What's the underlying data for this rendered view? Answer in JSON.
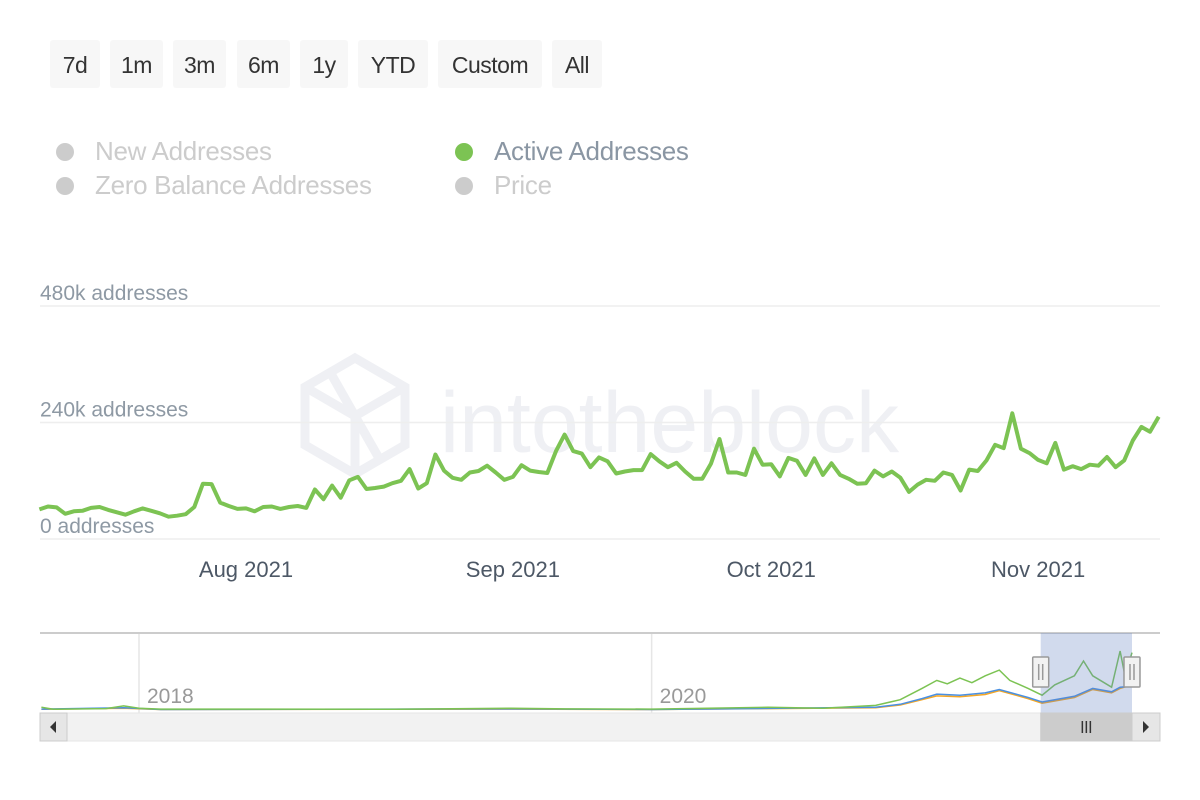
{
  "range_selector": {
    "buttons": [
      "7d",
      "1m",
      "3m",
      "6m",
      "1y",
      "YTD",
      "Custom",
      "All"
    ]
  },
  "legend": {
    "items": [
      {
        "label": "New Addresses",
        "active": false,
        "color": "#cccccc"
      },
      {
        "label": "Active Addresses",
        "active": true,
        "color": "#7cc353"
      },
      {
        "label": "Zero Balance Addresses",
        "active": false,
        "color": "#cccccc"
      },
      {
        "label": "Price",
        "active": false,
        "color": "#cccccc"
      }
    ]
  },
  "watermark": {
    "text": "intotheblock"
  },
  "chart_data": {
    "type": "line",
    "title": "",
    "xlabel": "",
    "ylabel": "",
    "grid": true,
    "legend_placement": "top-left",
    "y_ticks": [
      {
        "value": 0,
        "label": "0 addresses"
      },
      {
        "value": 240000,
        "label": "240k addresses"
      },
      {
        "value": 480000,
        "label": "480k addresses"
      }
    ],
    "ylim": [
      0,
      480000
    ],
    "x_ticks": [
      {
        "date": "2021-08-01",
        "label": "Aug 2021"
      },
      {
        "date": "2021-09-01",
        "label": "Sep 2021"
      },
      {
        "date": "2021-10-01",
        "label": "Oct 2021"
      },
      {
        "date": "2021-11-01",
        "label": "Nov 2021"
      }
    ],
    "xlim": [
      "2021-07-08",
      "2021-11-15"
    ],
    "series": [
      {
        "name": "Active Addresses",
        "color": "#7cc353",
        "points": [
          [
            "2021-07-08",
            61000
          ],
          [
            "2021-07-09",
            67000
          ],
          [
            "2021-07-10",
            65000
          ],
          [
            "2021-07-11",
            52000
          ],
          [
            "2021-07-12",
            57000
          ],
          [
            "2021-07-13",
            58000
          ],
          [
            "2021-07-14",
            64000
          ],
          [
            "2021-07-15",
            66000
          ],
          [
            "2021-07-16",
            60000
          ],
          [
            "2021-07-17",
            55000
          ],
          [
            "2021-07-18",
            50000
          ],
          [
            "2021-07-19",
            57000
          ],
          [
            "2021-07-20",
            63000
          ],
          [
            "2021-07-21",
            58000
          ],
          [
            "2021-07-22",
            53000
          ],
          [
            "2021-07-23",
            46000
          ],
          [
            "2021-07-24",
            48000
          ],
          [
            "2021-07-25",
            51000
          ],
          [
            "2021-07-26",
            66000
          ],
          [
            "2021-07-27",
            114000
          ],
          [
            "2021-07-28",
            113000
          ],
          [
            "2021-07-29",
            75000
          ],
          [
            "2021-07-30",
            68000
          ],
          [
            "2021-07-31",
            62000
          ],
          [
            "2021-08-01",
            63000
          ],
          [
            "2021-08-02",
            57000
          ],
          [
            "2021-08-03",
            66000
          ],
          [
            "2021-08-04",
            67000
          ],
          [
            "2021-08-05",
            62000
          ],
          [
            "2021-08-06",
            66000
          ],
          [
            "2021-08-07",
            68000
          ],
          [
            "2021-08-08",
            64000
          ],
          [
            "2021-08-09",
            102000
          ],
          [
            "2021-08-10",
            82000
          ],
          [
            "2021-08-11",
            110000
          ],
          [
            "2021-08-12",
            85000
          ],
          [
            "2021-08-13",
            121000
          ],
          [
            "2021-08-14",
            128000
          ],
          [
            "2021-08-15",
            103000
          ],
          [
            "2021-08-16",
            105000
          ],
          [
            "2021-08-17",
            108000
          ],
          [
            "2021-08-18",
            115000
          ],
          [
            "2021-08-19",
            120000
          ],
          [
            "2021-08-20",
            144000
          ],
          [
            "2021-08-21",
            104000
          ],
          [
            "2021-08-22",
            115000
          ],
          [
            "2021-08-23",
            174000
          ],
          [
            "2021-08-24",
            141000
          ],
          [
            "2021-08-25",
            126000
          ],
          [
            "2021-08-26",
            122000
          ],
          [
            "2021-08-27",
            137000
          ],
          [
            "2021-08-28",
            140000
          ],
          [
            "2021-08-29",
            151000
          ],
          [
            "2021-08-30",
            137000
          ],
          [
            "2021-08-31",
            122000
          ],
          [
            "2021-09-01",
            128000
          ],
          [
            "2021-09-02",
            152000
          ],
          [
            "2021-09-03",
            141000
          ],
          [
            "2021-09-04",
            138000
          ],
          [
            "2021-09-05",
            136000
          ],
          [
            "2021-09-06",
            181000
          ],
          [
            "2021-09-07",
            215000
          ],
          [
            "2021-09-08",
            181000
          ],
          [
            "2021-09-09",
            176000
          ],
          [
            "2021-09-10",
            148000
          ],
          [
            "2021-09-11",
            168000
          ],
          [
            "2021-09-12",
            160000
          ],
          [
            "2021-09-13",
            135000
          ],
          [
            "2021-09-14",
            139000
          ],
          [
            "2021-09-15",
            142000
          ],
          [
            "2021-09-16",
            142000
          ],
          [
            "2021-09-17",
            175000
          ],
          [
            "2021-09-18",
            160000
          ],
          [
            "2021-09-19",
            148000
          ],
          [
            "2021-09-20",
            157000
          ],
          [
            "2021-09-21",
            139000
          ],
          [
            "2021-09-22",
            124000
          ],
          [
            "2021-09-23",
            124000
          ],
          [
            "2021-09-24",
            155000
          ],
          [
            "2021-09-25",
            206000
          ],
          [
            "2021-09-26",
            137000
          ],
          [
            "2021-09-27",
            137000
          ],
          [
            "2021-09-28",
            132000
          ],
          [
            "2021-09-29",
            186000
          ],
          [
            "2021-09-30",
            153000
          ],
          [
            "2021-10-01",
            154000
          ],
          [
            "2021-10-02",
            129000
          ],
          [
            "2021-10-03",
            167000
          ],
          [
            "2021-10-04",
            161000
          ],
          [
            "2021-10-05",
            132000
          ],
          [
            "2021-10-06",
            166000
          ],
          [
            "2021-10-07",
            132000
          ],
          [
            "2021-10-08",
            156000
          ],
          [
            "2021-10-09",
            132000
          ],
          [
            "2021-10-10",
            124000
          ],
          [
            "2021-10-11",
            114000
          ],
          [
            "2021-10-12",
            115000
          ],
          [
            "2021-10-13",
            141000
          ],
          [
            "2021-10-14",
            129000
          ],
          [
            "2021-10-15",
            139000
          ],
          [
            "2021-10-16",
            126000
          ],
          [
            "2021-10-17",
            97000
          ],
          [
            "2021-10-18",
            112000
          ],
          [
            "2021-10-19",
            122000
          ],
          [
            "2021-10-20",
            120000
          ],
          [
            "2021-10-21",
            137000
          ],
          [
            "2021-10-22",
            132000
          ],
          [
            "2021-10-23",
            100000
          ],
          [
            "2021-10-24",
            143000
          ],
          [
            "2021-10-25",
            140000
          ],
          [
            "2021-10-26",
            162000
          ],
          [
            "2021-10-27",
            194000
          ],
          [
            "2021-10-28",
            187000
          ],
          [
            "2021-10-29",
            259000
          ],
          [
            "2021-10-30",
            186000
          ],
          [
            "2021-10-31",
            177000
          ],
          [
            "2021-11-01",
            163000
          ],
          [
            "2021-11-02",
            156000
          ],
          [
            "2021-11-03",
            198000
          ],
          [
            "2021-11-04",
            143000
          ],
          [
            "2021-11-05",
            150000
          ],
          [
            "2021-11-06",
            144000
          ],
          [
            "2021-11-07",
            153000
          ],
          [
            "2021-11-08",
            151000
          ],
          [
            "2021-11-09",
            169000
          ],
          [
            "2021-11-10",
            148000
          ],
          [
            "2021-11-11",
            162000
          ],
          [
            "2021-11-12",
            203000
          ],
          [
            "2021-11-13",
            231000
          ],
          [
            "2021-11-14",
            221000
          ],
          [
            "2021-11-15",
            252000
          ]
        ]
      }
    ],
    "navigator": {
      "x_ticks": [
        {
          "date": "2018-01-01",
          "label": "2018"
        },
        {
          "date": "2020-01-01",
          "label": "2020"
        }
      ],
      "selected_range": [
        "2021-07-08",
        "2021-11-15"
      ],
      "series": [
        {
          "color": "#7cc353",
          "points": [
            [
              "2017-08-15",
              12000
            ],
            [
              "2017-09-01",
              3000
            ],
            [
              "2017-11-15",
              6000
            ],
            [
              "2017-12-10",
              18000
            ],
            [
              "2018-01-01",
              8000
            ],
            [
              "2018-02-01",
              4000
            ],
            [
              "2019-01-01",
              3000
            ],
            [
              "2019-06-15",
              8000
            ],
            [
              "2019-09-01",
              5000
            ],
            [
              "2020-01-01",
              4000
            ],
            [
              "2020-06-15",
              12000
            ],
            [
              "2020-09-01",
              8000
            ],
            [
              "2020-11-15",
              20000
            ],
            [
              "2020-12-20",
              45000
            ],
            [
              "2021-01-20",
              95000
            ],
            [
              "2021-02-10",
              130000
            ],
            [
              "2021-02-25",
              115000
            ],
            [
              "2021-03-15",
              140000
            ],
            [
              "2021-04-01",
              120000
            ],
            [
              "2021-04-20",
              150000
            ],
            [
              "2021-05-10",
              175000
            ],
            [
              "2021-05-25",
              130000
            ],
            [
              "2021-06-20",
              95000
            ],
            [
              "2021-07-10",
              65000
            ],
            [
              "2021-07-28",
              110000
            ],
            [
              "2021-08-25",
              150000
            ],
            [
              "2021-09-07",
              215000
            ],
            [
              "2021-09-20",
              150000
            ],
            [
              "2021-10-17",
              100000
            ],
            [
              "2021-10-29",
              259000
            ],
            [
              "2021-11-05",
              150000
            ],
            [
              "2021-11-15",
              252000
            ]
          ]
        },
        {
          "color": "#4a90e2",
          "points": [
            [
              "2017-08-15",
              4000
            ],
            [
              "2017-12-10",
              10000
            ],
            [
              "2018-02-01",
              2000
            ],
            [
              "2019-06-15",
              5000
            ],
            [
              "2020-01-01",
              2000
            ],
            [
              "2020-06-15",
              7000
            ],
            [
              "2020-11-15",
              12000
            ],
            [
              "2020-12-20",
              25000
            ],
            [
              "2021-01-20",
              50000
            ],
            [
              "2021-02-10",
              70000
            ],
            [
              "2021-03-15",
              65000
            ],
            [
              "2021-04-20",
              75000
            ],
            [
              "2021-05-10",
              90000
            ],
            [
              "2021-06-20",
              55000
            ],
            [
              "2021-07-10",
              35000
            ],
            [
              "2021-08-25",
              60000
            ],
            [
              "2021-09-20",
              95000
            ],
            [
              "2021-10-17",
              80000
            ],
            [
              "2021-10-29",
              100000
            ],
            [
              "2021-11-15",
              105000
            ]
          ]
        },
        {
          "color": "#f5a623",
          "points": [
            [
              "2017-08-15",
              3000
            ],
            [
              "2017-12-10",
              8000
            ],
            [
              "2018-02-01",
              2000
            ],
            [
              "2019-06-15",
              4000
            ],
            [
              "2020-01-01",
              2000
            ],
            [
              "2020-06-15",
              6000
            ],
            [
              "2020-11-15",
              10000
            ],
            [
              "2020-12-20",
              22000
            ],
            [
              "2021-01-20",
              45000
            ],
            [
              "2021-02-10",
              62000
            ],
            [
              "2021-03-15",
              58000
            ],
            [
              "2021-04-20",
              68000
            ],
            [
              "2021-05-10",
              85000
            ],
            [
              "2021-06-20",
              50000
            ],
            [
              "2021-07-10",
              30000
            ],
            [
              "2021-08-25",
              55000
            ],
            [
              "2021-09-20",
              90000
            ],
            [
              "2021-10-17",
              75000
            ],
            [
              "2021-10-29",
              95000
            ],
            [
              "2021-11-15",
              110000
            ]
          ]
        }
      ]
    }
  }
}
